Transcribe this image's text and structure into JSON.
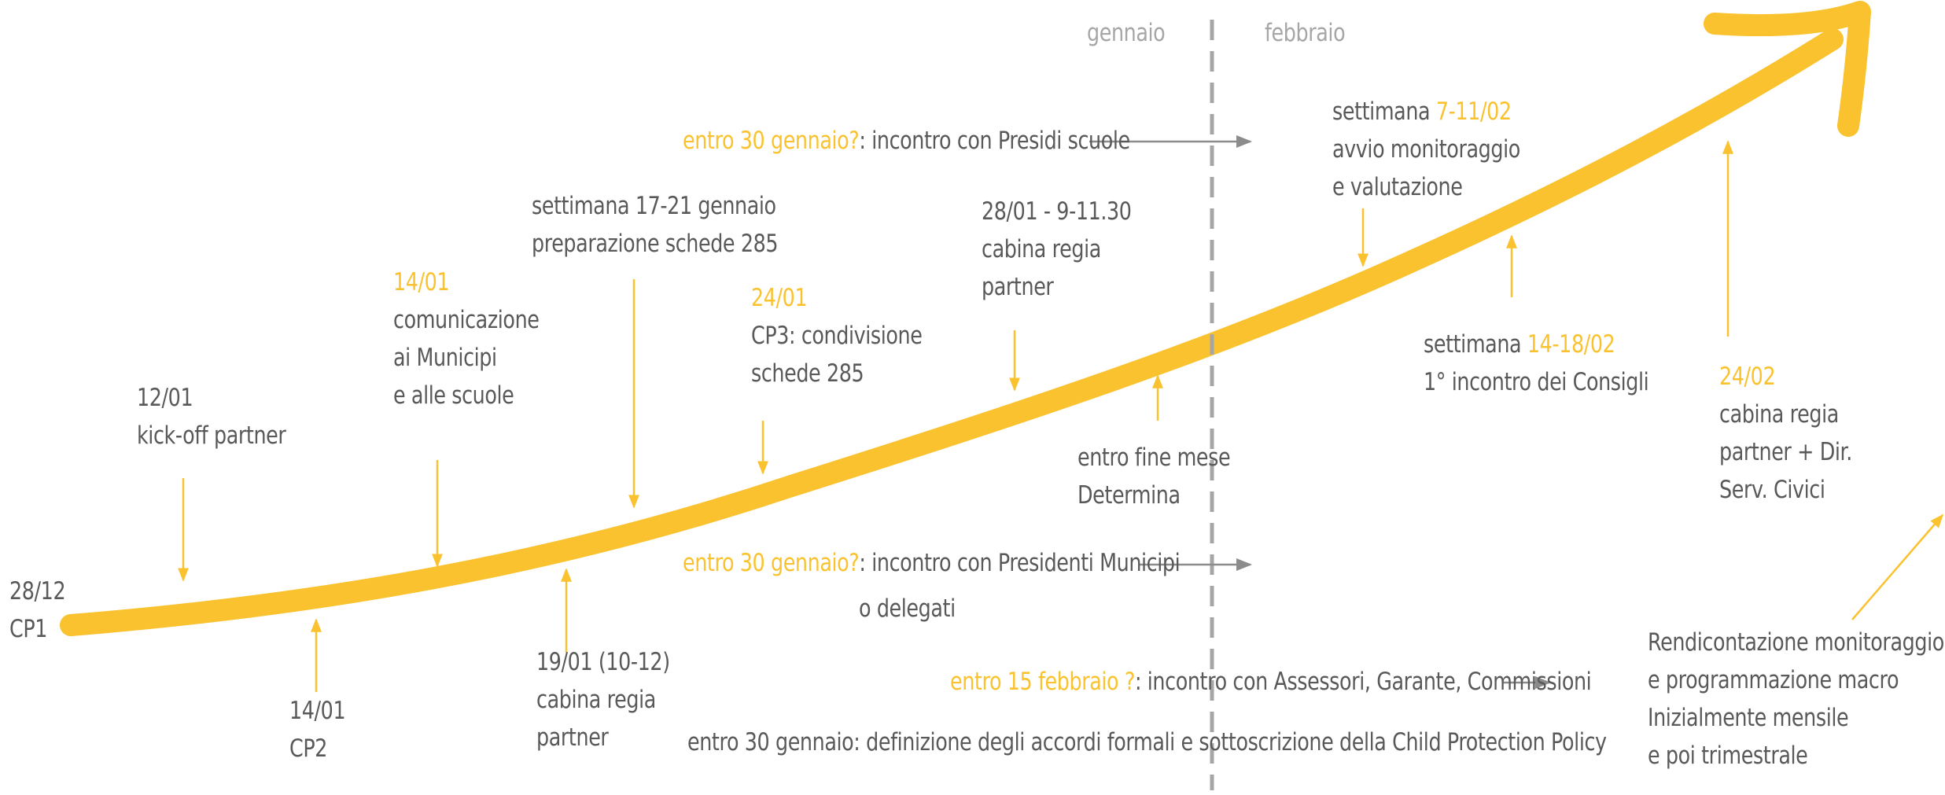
{
  "colors": {
    "accent": "#f9c22e",
    "text": "#595959",
    "muted": "#a6a6a6",
    "divider": "#a6a6a6"
  },
  "months": {
    "left": "gennaio",
    "right": "febbraio"
  },
  "start": {
    "date": "28/12",
    "label": "CP1"
  },
  "milestones": {
    "kickoff": {
      "date": "12/01",
      "label": "kick-off partner"
    },
    "cp2": {
      "date": "14/01",
      "label": "CP2"
    },
    "comms": {
      "date": "14/01",
      "lines": [
        "comunicazione",
        "ai Municipi",
        "e alle scuole"
      ]
    },
    "cabina1901": {
      "date": "19/01 (10-12)",
      "lines": [
        "cabina regia",
        "partner"
      ]
    },
    "schede": {
      "lines": [
        "settimana 17-21 gennaio",
        "preparazione schede 285"
      ]
    },
    "cp3": {
      "date": "24/01",
      "lines": [
        "CP3: condivisione",
        "schede 285"
      ]
    },
    "cabina2801": {
      "date": "28/01 - 9-11.30",
      "lines": [
        "cabina regia",
        "partner"
      ]
    },
    "determina": {
      "lines": [
        "entro fine mese",
        "Determina"
      ]
    },
    "monitor": {
      "prefix": "settimana",
      "date": "7-11/02",
      "lines": [
        "avvio monitoraggio",
        "e valutazione"
      ]
    },
    "consigli": {
      "prefix": "settimana",
      "date": "14-18/02",
      "line": "1° incontro dei Consigli"
    },
    "cabina2402": {
      "date": "24/02",
      "lines": [
        "cabina regia",
        "partner + Dir.",
        "Serv. Civici"
      ]
    }
  },
  "deadlines": {
    "presidi": {
      "when": "entro 30 gennaio?",
      "what": ": incontro con Presidi scuole"
    },
    "presidenti": {
      "when": "entro 30 gennaio?",
      "what": ": incontro con Presidenti Municipi",
      "line2": "o delegati"
    },
    "assessori": {
      "when": "entro 15 febbraio ?",
      "what": ": incontro con Assessori, Garante, Commissioni"
    },
    "accordi": {
      "text": "entro 30 gennaio: definizione degli accordi formali e sottoscrizione della Child Protection Policy"
    }
  },
  "reporting": {
    "lines": [
      "Rendicontazione monitoraggio",
      "e programmazione macro",
      "Inizialmente mensile",
      "e poi trimestrale"
    ]
  }
}
